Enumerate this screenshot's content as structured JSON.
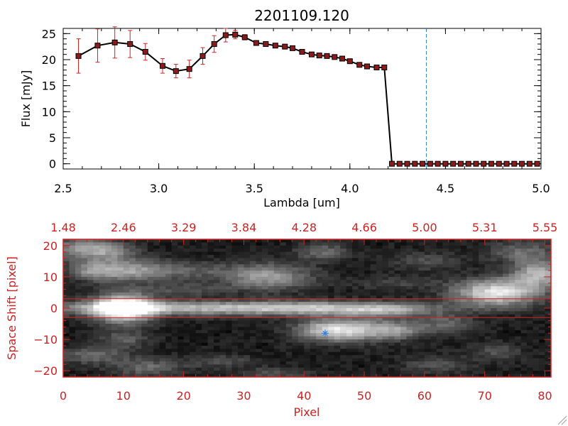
{
  "title": "2201109.120",
  "colors": {
    "axis_black": "#000000",
    "axis_red": "#cc2222",
    "marker_fill": "#8b1a1a",
    "error_bar": "#cc2222",
    "vline": "#3a7fd5",
    "hline": "#cc2222",
    "star": "#3a7fd5"
  },
  "chart_data": [
    {
      "type": "line",
      "title": "2201109.120",
      "xlabel": "Lambda [um]",
      "ylabel": "Flux [mJy]",
      "xlim": [
        2.5,
        5.0
      ],
      "ylim": [
        -1,
        26
      ],
      "x_ticks": [
        2.5,
        3.0,
        3.5,
        4.0,
        4.5,
        5.0
      ],
      "x_tick_labels": [
        "2.5",
        "3.0",
        "3.5",
        "4.0",
        "4.5",
        "5.0"
      ],
      "y_ticks": [
        0,
        5,
        10,
        15,
        20,
        25
      ],
      "y_tick_labels": [
        "0",
        "5",
        "10",
        "15",
        "20",
        "25"
      ],
      "marker": "square",
      "vertical_line_x": 4.4,
      "series": [
        {
          "x": [
            2.58,
            2.68,
            2.77,
            2.85,
            2.93,
            3.02,
            3.09,
            3.16,
            3.23,
            3.29,
            3.35,
            3.4,
            3.45,
            3.51,
            3.56,
            3.61,
            3.66,
            3.7,
            3.75,
            3.8,
            3.84,
            3.88,
            3.92,
            3.96,
            4.0,
            4.05,
            4.09,
            4.14,
            4.18,
            4.22,
            4.26,
            4.3,
            4.34,
            4.38,
            4.42,
            4.46,
            4.5,
            4.54,
            4.58,
            4.62,
            4.66,
            4.7,
            4.74,
            4.78,
            4.82,
            4.86,
            4.9,
            4.94,
            4.98
          ],
          "values": [
            20.7,
            22.7,
            23.3,
            23.0,
            21.5,
            18.8,
            17.8,
            18.2,
            20.7,
            23.0,
            24.7,
            24.8,
            24.3,
            23.2,
            23.0,
            22.7,
            22.5,
            22.2,
            21.5,
            21.0,
            20.8,
            20.7,
            20.5,
            20.2,
            19.7,
            19.0,
            18.7,
            18.5,
            18.5,
            0,
            0,
            0,
            0,
            0,
            0,
            0,
            0,
            0,
            0,
            0,
            0,
            0,
            0,
            0,
            0,
            0,
            0,
            0,
            0
          ],
          "errors": [
            3.3,
            3.2,
            3.0,
            2.6,
            1.6,
            1.4,
            1.3,
            1.7,
            1.6,
            1.6,
            1.3,
            0.8,
            0.5,
            0.4,
            0.4,
            0.4,
            0.4,
            0.4,
            0.4,
            0.3,
            0.3,
            0.3,
            0.3,
            0.3,
            0.3,
            0.3,
            0.3,
            0.3,
            0.3,
            0,
            0,
            0,
            0,
            0,
            0,
            0,
            0,
            0,
            0,
            0,
            0,
            0,
            0,
            0,
            0,
            0,
            0,
            0,
            0
          ]
        }
      ]
    },
    {
      "type": "heatmap",
      "xlabel": "Pixel",
      "ylabel": "Space Shift [pixel]",
      "xlim": [
        0,
        81
      ],
      "ylim": [
        -22,
        22
      ],
      "x_ticks": [
        0,
        10,
        20,
        30,
        40,
        50,
        60,
        70,
        80
      ],
      "x_tick_labels": [
        "0",
        "10",
        "20",
        "30",
        "40",
        "50",
        "60",
        "70",
        "80"
      ],
      "y_ticks": [
        -20,
        -10,
        0,
        10,
        20
      ],
      "y_tick_labels": [
        "−20",
        "−10",
        "0",
        "10",
        "20"
      ],
      "top_axis_ticks": [
        0,
        10,
        20,
        30,
        40,
        50,
        60,
        70,
        80
      ],
      "top_axis_labels": [
        "1.48",
        "2.46",
        "3.29",
        "3.84",
        "4.28",
        "4.66",
        "5.00",
        "5.31",
        "5.55"
      ],
      "horizontal_lines_y": [
        3,
        -3
      ],
      "star_marker": [
        43.5,
        -8
      ],
      "blobs": [
        {
          "x": 10,
          "y": 0,
          "sx": 3.5,
          "sy": 3.2,
          "a": 1.0
        },
        {
          "x": 20,
          "y": 0,
          "sx": 20,
          "sy": 1.6,
          "a": 0.55
        },
        {
          "x": 45,
          "y": 0,
          "sx": 12,
          "sy": 1.5,
          "a": 0.4
        },
        {
          "x": 54,
          "y": -1,
          "sx": 5,
          "sy": 1.5,
          "a": 0.25
        },
        {
          "x": 72,
          "y": 5,
          "sx": 5,
          "sy": 3,
          "a": 0.8
        },
        {
          "x": 79,
          "y": 11,
          "sx": 3,
          "sy": 3,
          "a": 0.6
        },
        {
          "x": 3,
          "y": 19,
          "sx": 4,
          "sy": 2.5,
          "a": 0.45
        },
        {
          "x": 8,
          "y": 18,
          "sx": 3,
          "sy": 2,
          "a": 0.3
        },
        {
          "x": 5,
          "y": 12,
          "sx": 3,
          "sy": 2,
          "a": 0.3
        },
        {
          "x": 11,
          "y": 12,
          "sx": 5,
          "sy": 2.5,
          "a": 0.5
        },
        {
          "x": 22,
          "y": 12,
          "sx": 5,
          "sy": 2,
          "a": 0.2
        },
        {
          "x": 34,
          "y": 10,
          "sx": 5,
          "sy": 3,
          "a": 0.5
        },
        {
          "x": 43,
          "y": 18,
          "sx": 3,
          "sy": 2,
          "a": 0.3
        },
        {
          "x": 44,
          "y": -7,
          "sx": 4,
          "sy": 2.5,
          "a": 0.55
        },
        {
          "x": 50,
          "y": -7,
          "sx": 5,
          "sy": 2.5,
          "a": 0.45
        },
        {
          "x": 56,
          "y": -7,
          "sx": 3,
          "sy": 2,
          "a": 0.3
        },
        {
          "x": 64,
          "y": -5,
          "sx": 3,
          "sy": 2,
          "a": 0.3
        },
        {
          "x": 10,
          "y": -10,
          "sx": 3,
          "sy": 2,
          "a": 0.25
        },
        {
          "x": 5,
          "y": -15,
          "sx": 4,
          "sy": 2,
          "a": 0.3
        },
        {
          "x": 14,
          "y": -19,
          "sx": 4,
          "sy": 2,
          "a": 0.3
        },
        {
          "x": 26,
          "y": -17,
          "sx": 4,
          "sy": 1.5,
          "a": 0.2
        },
        {
          "x": 35,
          "y": -21,
          "sx": 4,
          "sy": 1.5,
          "a": 0.2
        },
        {
          "x": 62,
          "y": -18,
          "sx": 4,
          "sy": 2,
          "a": 0.2
        },
        {
          "x": 72,
          "y": -14,
          "sx": 3,
          "sy": 2,
          "a": 0.2
        },
        {
          "x": 76,
          "y": 18,
          "sx": 4,
          "sy": 2.5,
          "a": 0.3
        },
        {
          "x": 60,
          "y": 15,
          "sx": 4,
          "sy": 2,
          "a": 0.2
        },
        {
          "x": 20,
          "y": 6,
          "sx": 5,
          "sy": 1.5,
          "a": 0.2
        },
        {
          "x": 55,
          "y": 8,
          "sx": 5,
          "sy": 1.5,
          "a": 0.15
        }
      ]
    }
  ]
}
